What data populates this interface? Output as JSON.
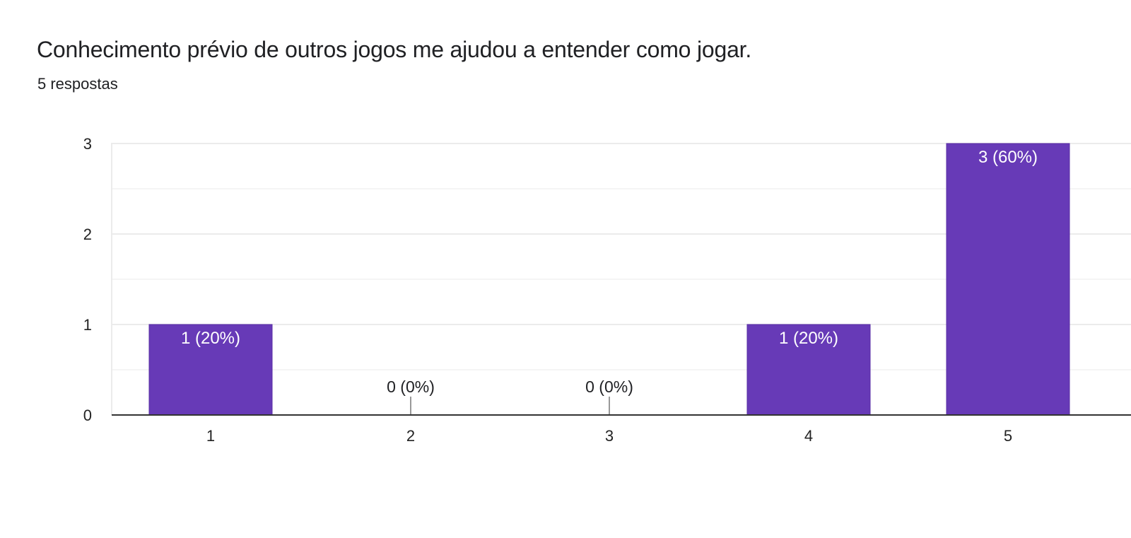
{
  "header": {
    "title": "Conhecimento prévio de outros jogos me ajudou a entender como jogar.",
    "responses": "5 respostas"
  },
  "colors": {
    "bar": "#673ab7",
    "bar_label_inside": "#ffffff",
    "label_outside": "#202124",
    "gridline": "#ebebeb",
    "minor_gridline": "#f5f5f5",
    "axis": "#333333",
    "zero_stub": "#999999"
  },
  "chart_data": {
    "type": "bar",
    "categories": [
      "1",
      "2",
      "3",
      "4",
      "5"
    ],
    "values": [
      1,
      0,
      0,
      1,
      3
    ],
    "data_labels": [
      "1 (20%)",
      "0 (0%)",
      "0 (0%)",
      "1 (20%)",
      "3 (60%)"
    ],
    "y_ticks": [
      "0",
      "1",
      "2",
      "3"
    ],
    "ylim": [
      0,
      3
    ],
    "title": "Conhecimento prévio de outros jogos me ajudou a entender como jogar.",
    "xlabel": "",
    "ylabel": "",
    "grid": true,
    "legend": "none"
  }
}
